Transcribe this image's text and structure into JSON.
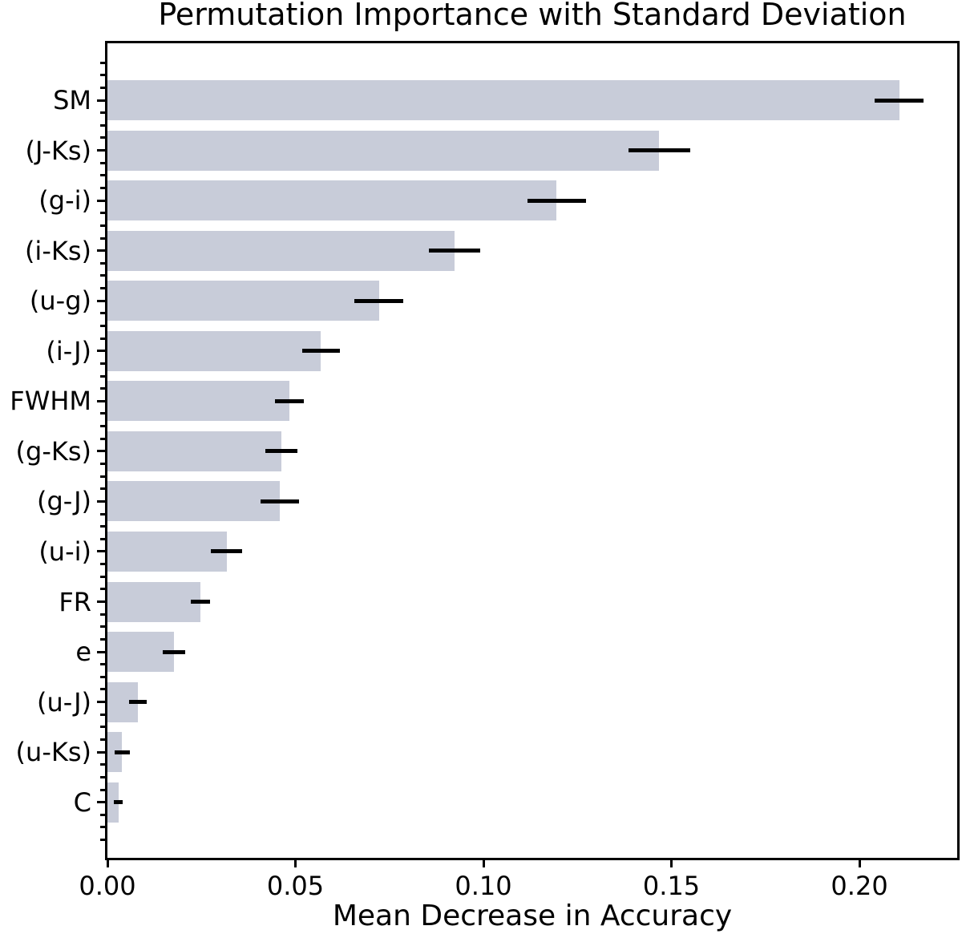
{
  "chart_data": {
    "type": "bar",
    "orientation": "horizontal",
    "title": "Permutation Importance with Standard Deviation",
    "xlabel": "Mean Decrease in Accuracy",
    "ylabel": "",
    "categories": [
      "SM",
      "(J-Ks)",
      "(g-i)",
      "(i-Ks)",
      "(u-g)",
      "(i-J)",
      "FWHM",
      "(g-Ks)",
      "(g-J)",
      "(u-i)",
      "FR",
      "e",
      "(u-J)",
      "(u-Ks)",
      "C"
    ],
    "values": [
      0.2106,
      0.1467,
      0.1195,
      0.0923,
      0.0722,
      0.0568,
      0.0484,
      0.0463,
      0.0459,
      0.0317,
      0.0248,
      0.0177,
      0.0081,
      0.0039,
      0.0029
    ],
    "errors": [
      0.0065,
      0.0082,
      0.0078,
      0.0068,
      0.0065,
      0.005,
      0.0039,
      0.0042,
      0.0051,
      0.0041,
      0.0026,
      0.003,
      0.0023,
      0.002,
      0.0012
    ],
    "xticks": [
      "0.00",
      "0.05",
      "0.10",
      "0.15",
      "0.20"
    ],
    "xtick_values": [
      0.0,
      0.05,
      0.1,
      0.15,
      0.2
    ],
    "xlim": [
      0,
      0.226
    ],
    "grid": false,
    "legend": null,
    "bar_color": "#c8ccd9",
    "error_color": "#000000",
    "axis_color": "#000000"
  }
}
